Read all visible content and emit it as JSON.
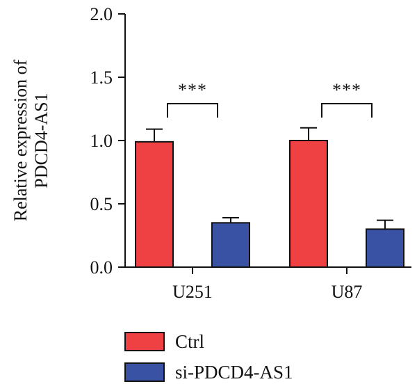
{
  "chart_data": {
    "type": "bar",
    "title": "",
    "ylabel_lines": [
      "Relative expression of",
      "PDCD4-AS1"
    ],
    "xlabel": "",
    "categories": [
      "U251",
      "U87"
    ],
    "ylim": [
      0,
      2.0
    ],
    "yticks": [
      0.0,
      0.5,
      1.0,
      1.5,
      2.0
    ],
    "ytick_labels": [
      "0.0",
      "0.5",
      "1.0",
      "1.5",
      "2.0"
    ],
    "series": [
      {
        "name": "Ctrl",
        "color": "#ef4044",
        "values": [
          0.99,
          1.0
        ],
        "errors": [
          0.1,
          0.1
        ]
      },
      {
        "name": "si-PDCD4-AS1",
        "color": "#3a52a3",
        "values": [
          0.35,
          0.3
        ],
        "errors": [
          0.04,
          0.07
        ]
      }
    ],
    "significance": [
      {
        "category": "U251",
        "label": "***"
      },
      {
        "category": "U87",
        "label": "***"
      }
    ],
    "legend_position": "bottom",
    "grid": false
  }
}
